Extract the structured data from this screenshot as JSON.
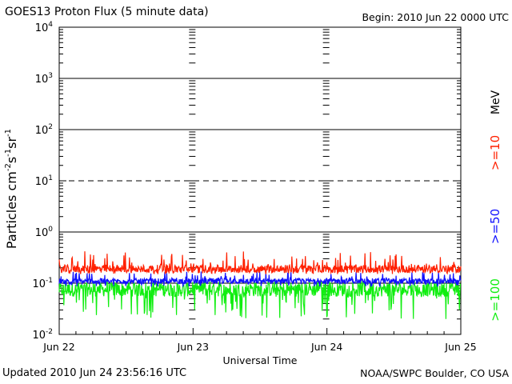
{
  "header": {
    "title": "GOES13 Proton Flux (5 minute data)",
    "begin": "Begin: 2010 Jun 22 0000 UTC"
  },
  "footer": {
    "updated": "Updated 2010 Jun 24 23:56:16 UTC",
    "credit": "NOAA/SWPC Boulder, CO USA"
  },
  "chart_data": {
    "type": "line",
    "title": "GOES13 Proton Flux (5 minute data)",
    "xlabel": "Universal Time",
    "ylabel": "Particles cm⁻² s⁻¹ sr⁻¹",
    "ylabel_parts": {
      "base": "Particles cm",
      "e1": "-2",
      "s": "s",
      "e2": "-1",
      "sr": "sr",
      "e3": "-1"
    },
    "yscale": "log",
    "ylim": [
      0.01,
      10000
    ],
    "x_ticks": [
      "Jun 22",
      "Jun 23",
      "Jun 24",
      "Jun 25"
    ],
    "y_ticks": [
      {
        "value": 10000,
        "base": "10",
        "exp": "4"
      },
      {
        "value": 1000,
        "base": "10",
        "exp": "3"
      },
      {
        "value": 100,
        "base": "10",
        "exp": "2"
      },
      {
        "value": 10,
        "base": "10",
        "exp": "1"
      },
      {
        "value": 1,
        "base": "10",
        "exp": "0"
      },
      {
        "value": 0.1,
        "base": "10",
        "exp": "-1"
      },
      {
        "value": 0.01,
        "base": "10",
        "exp": "-2"
      }
    ],
    "unit_label": "MeV",
    "series": [
      {
        "name": ">=10",
        "color": "#ff2000",
        "median": 0.19,
        "spread_low": 0.15,
        "spread_high": 0.42
      },
      {
        "name": ">=50",
        "color": "#1010ff",
        "median": 0.11,
        "spread_low": 0.085,
        "spread_high": 0.17
      },
      {
        "name": ">=100",
        "color": "#10ee10",
        "median": 0.075,
        "spread_low": 0.02,
        "spread_high": 0.12
      }
    ],
    "reference_lines": [
      {
        "value": 10,
        "style": "dashed"
      },
      {
        "value": 100,
        "style": "solid"
      },
      {
        "value": 1000,
        "style": "solid"
      },
      {
        "value": 1,
        "style": "solid"
      },
      {
        "value": 0.1,
        "style": "solid"
      }
    ],
    "legend_placement": "right (vertical)"
  }
}
